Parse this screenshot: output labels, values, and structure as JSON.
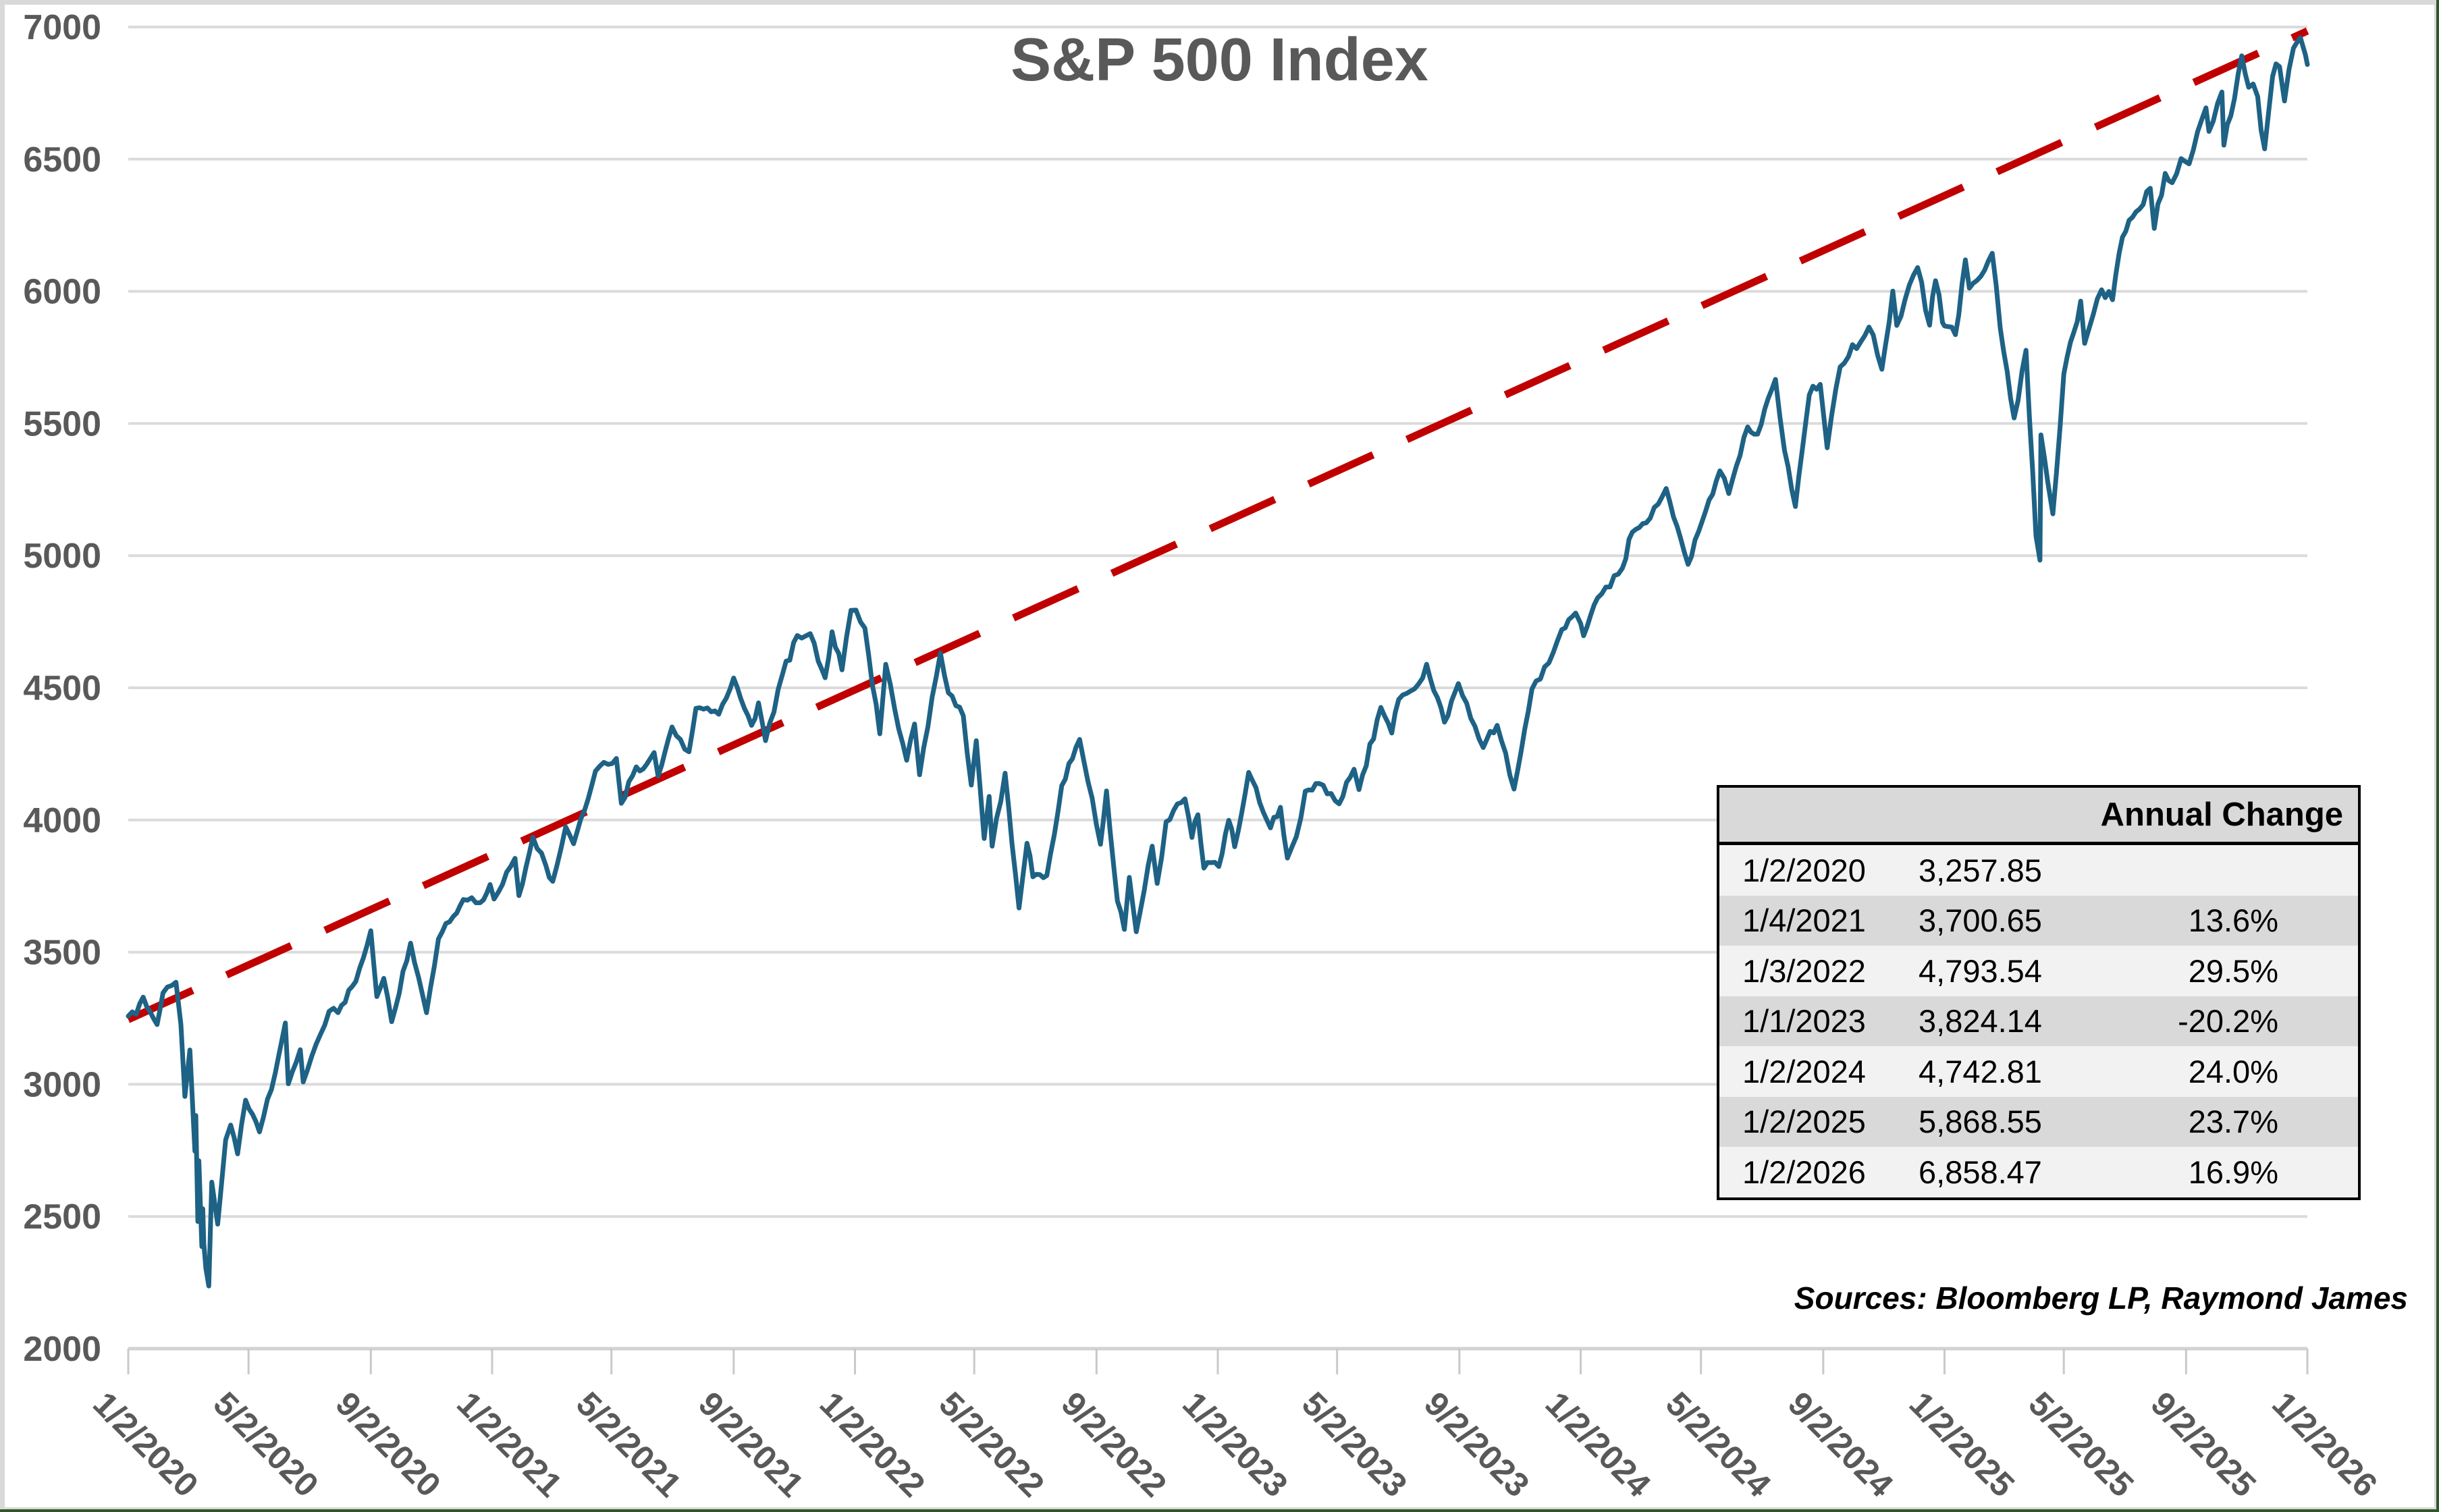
{
  "chart_data": {
    "type": "line",
    "title": "S&P 500 Index",
    "source_note": "Sources: Bloomberg LP, Raymond James",
    "grid": "horizontal",
    "colors": {
      "series_line": "#1E6285",
      "trend_line": "#C00000",
      "gridline": "#DBDBDB",
      "axis_line": "#D2D2D2",
      "tick": "#C9C9C9",
      "axis_label": "#595959",
      "title": "#595959",
      "table_header_bg": "#D9D9D9",
      "table_row_light": "#F2F2F2",
      "table_row_dark": "#D9D9D9",
      "frame": "#D9D9D9",
      "edge": "#33552A"
    },
    "y_axis": {
      "min": 2000,
      "max": 7000,
      "step": 500,
      "tick_labels": [
        "7000",
        "6500",
        "6000",
        "5500",
        "5000",
        "4500",
        "4000",
        "3500",
        "3000",
        "2500",
        "2000"
      ]
    },
    "x_axis": {
      "tick_labels": [
        "1/2/2020",
        "5/2/2020",
        "9/2/2020",
        "1/2/2021",
        "5/2/2021",
        "9/2/2021",
        "1/2/2022",
        "5/2/2022",
        "9/2/2022",
        "1/2/2023",
        "5/2/2023",
        "9/2/2023",
        "1/2/2024",
        "5/2/2024",
        "9/2/2024",
        "1/2/2025",
        "5/2/2025",
        "9/2/2025",
        "1/2/2026"
      ]
    },
    "series": [
      {
        "name": "S&P 500 Index",
        "color": "#1E6285",
        "style": "solid",
        "points": [
          [
            "2020-01-02",
            3258
          ],
          [
            "2020-01-10",
            3265
          ],
          [
            "2020-01-17",
            3330
          ],
          [
            "2020-01-31",
            3226
          ],
          [
            "2020-02-06",
            3346
          ],
          [
            "2020-02-19",
            3386
          ],
          [
            "2020-02-24",
            3226
          ],
          [
            "2020-02-28",
            2954
          ],
          [
            "2020-03-04",
            3130
          ],
          [
            "2020-03-09",
            2747
          ],
          [
            "2020-03-10",
            2882
          ],
          [
            "2020-03-12",
            2481
          ],
          [
            "2020-03-13",
            2711
          ],
          [
            "2020-03-16",
            2386
          ],
          [
            "2020-03-17",
            2529
          ],
          [
            "2020-03-18",
            2398
          ],
          [
            "2020-03-20",
            2305
          ],
          [
            "2020-03-23",
            2237
          ],
          [
            "2020-03-26",
            2630
          ],
          [
            "2020-04-01",
            2471
          ],
          [
            "2020-04-09",
            2790
          ],
          [
            "2020-04-14",
            2846
          ],
          [
            "2020-04-21",
            2737
          ],
          [
            "2020-04-29",
            2940
          ],
          [
            "2020-05-13",
            2820
          ],
          [
            "2020-05-29",
            3044
          ],
          [
            "2020-06-08",
            3232
          ],
          [
            "2020-06-11",
            3002
          ],
          [
            "2020-06-23",
            3131
          ],
          [
            "2020-06-26",
            3009
          ],
          [
            "2020-07-09",
            3152
          ],
          [
            "2020-07-22",
            3276
          ],
          [
            "2020-07-31",
            3271
          ],
          [
            "2020-08-18",
            3390
          ],
          [
            "2020-09-02",
            3581
          ],
          [
            "2020-09-08",
            3332
          ],
          [
            "2020-09-15",
            3401
          ],
          [
            "2020-09-23",
            3237
          ],
          [
            "2020-10-12",
            3534
          ],
          [
            "2020-10-28",
            3271
          ],
          [
            "2020-11-09",
            3550
          ],
          [
            "2020-11-24",
            3635
          ],
          [
            "2020-12-04",
            3699
          ],
          [
            "2020-12-21",
            3687
          ],
          [
            "2020-12-31",
            3756
          ],
          [
            "2021-01-04",
            3701
          ],
          [
            "2021-01-25",
            3855
          ],
          [
            "2021-01-29",
            3714
          ],
          [
            "2021-02-12",
            3935
          ],
          [
            "2021-02-25",
            3829
          ],
          [
            "2021-03-04",
            3768
          ],
          [
            "2021-03-17",
            3974
          ],
          [
            "2021-03-25",
            3910
          ],
          [
            "2021-04-16",
            4185
          ],
          [
            "2021-05-07",
            4233
          ],
          [
            "2021-05-12",
            4063
          ],
          [
            "2021-05-27",
            4201
          ],
          [
            "2021-06-03",
            4193
          ],
          [
            "2021-06-14",
            4255
          ],
          [
            "2021-06-18",
            4166
          ],
          [
            "2021-07-02",
            4352
          ],
          [
            "2021-07-19",
            4258
          ],
          [
            "2021-07-26",
            4422
          ],
          [
            "2021-08-18",
            4400
          ],
          [
            "2021-09-02",
            4537
          ],
          [
            "2021-09-20",
            4358
          ],
          [
            "2021-09-27",
            4443
          ],
          [
            "2021-10-04",
            4300
          ],
          [
            "2021-10-21",
            4550
          ],
          [
            "2021-11-05",
            4698
          ],
          [
            "2021-11-18",
            4705
          ],
          [
            "2021-11-30",
            4567
          ],
          [
            "2021-12-03",
            4538
          ],
          [
            "2021-12-10",
            4712
          ],
          [
            "2021-12-20",
            4568
          ],
          [
            "2021-12-29",
            4793
          ],
          [
            "2022-01-03",
            4794
          ],
          [
            "2022-01-12",
            4726
          ],
          [
            "2022-01-27",
            4326
          ],
          [
            "2022-02-02",
            4589
          ],
          [
            "2022-02-11",
            4419
          ],
          [
            "2022-02-23",
            4226
          ],
          [
            "2022-03-03",
            4363
          ],
          [
            "2022-03-08",
            4171
          ],
          [
            "2022-03-29",
            4632
          ],
          [
            "2022-04-06",
            4481
          ],
          [
            "2022-04-21",
            4394
          ],
          [
            "2022-04-29",
            4132
          ],
          [
            "2022-05-04",
            4300
          ],
          [
            "2022-05-12",
            3930
          ],
          [
            "2022-05-17",
            4089
          ],
          [
            "2022-05-20",
            3901
          ],
          [
            "2022-06-02",
            4177
          ],
          [
            "2022-06-16",
            3667
          ],
          [
            "2022-06-24",
            3912
          ],
          [
            "2022-06-30",
            3785
          ],
          [
            "2022-07-14",
            3790
          ],
          [
            "2022-07-29",
            4130
          ],
          [
            "2022-08-16",
            4305
          ],
          [
            "2022-09-06",
            3908
          ],
          [
            "2022-09-12",
            4110
          ],
          [
            "2022-09-23",
            3693
          ],
          [
            "2022-09-30",
            3586
          ],
          [
            "2022-10-05",
            3783
          ],
          [
            "2022-10-12",
            3577
          ],
          [
            "2022-10-28",
            3901
          ],
          [
            "2022-11-02",
            3760
          ],
          [
            "2022-11-11",
            3993
          ],
          [
            "2022-11-30",
            4080
          ],
          [
            "2022-12-07",
            3934
          ],
          [
            "2022-12-13",
            4020
          ],
          [
            "2022-12-19",
            3818
          ],
          [
            "2022-12-30",
            3840
          ],
          [
            "2023-01-03",
            3824
          ],
          [
            "2023-01-13",
            3999
          ],
          [
            "2023-01-19",
            3899
          ],
          [
            "2023-02-02",
            4180
          ],
          [
            "2023-02-24",
            3970
          ],
          [
            "2023-03-06",
            4048
          ],
          [
            "2023-03-13",
            3856
          ],
          [
            "2023-03-22",
            3937
          ],
          [
            "2023-03-31",
            4109
          ],
          [
            "2023-04-14",
            4138
          ],
          [
            "2023-05-04",
            4061
          ],
          [
            "2023-05-19",
            4192
          ],
          [
            "2023-05-24",
            4115
          ],
          [
            "2023-06-15",
            4426
          ],
          [
            "2023-06-26",
            4329
          ],
          [
            "2023-07-03",
            4456
          ],
          [
            "2023-07-27",
            4537
          ],
          [
            "2023-07-31",
            4589
          ],
          [
            "2023-08-18",
            4370
          ],
          [
            "2023-09-01",
            4516
          ],
          [
            "2023-09-26",
            4274
          ],
          [
            "2023-10-10",
            4358
          ],
          [
            "2023-10-27",
            4117
          ],
          [
            "2023-11-14",
            4496
          ],
          [
            "2023-12-01",
            4594
          ],
          [
            "2023-12-14",
            4720
          ],
          [
            "2023-12-28",
            4783
          ],
          [
            "2024-01-02",
            4743
          ],
          [
            "2024-01-05",
            4697
          ],
          [
            "2024-01-19",
            4840
          ],
          [
            "2024-02-13",
            4953
          ],
          [
            "2024-02-23",
            5089
          ],
          [
            "2024-03-08",
            5124
          ],
          [
            "2024-03-28",
            5254
          ],
          [
            "2024-04-19",
            4967
          ],
          [
            "2024-05-03",
            5128
          ],
          [
            "2024-05-21",
            5321
          ],
          [
            "2024-05-30",
            5235
          ],
          [
            "2024-06-18",
            5487
          ],
          [
            "2024-06-28",
            5460
          ],
          [
            "2024-07-16",
            5667
          ],
          [
            "2024-07-25",
            5399
          ],
          [
            "2024-08-05",
            5186
          ],
          [
            "2024-08-19",
            5608
          ],
          [
            "2024-08-30",
            5648
          ],
          [
            "2024-09-06",
            5408
          ],
          [
            "2024-09-19",
            5714
          ],
          [
            "2024-10-18",
            5865
          ],
          [
            "2024-10-31",
            5705
          ],
          [
            "2024-11-11",
            6001
          ],
          [
            "2024-11-15",
            5871
          ],
          [
            "2024-12-06",
            6090
          ],
          [
            "2024-12-18",
            5872
          ],
          [
            "2024-12-24",
            6040
          ],
          [
            "2024-12-31",
            5882
          ],
          [
            "2025-01-02",
            5869
          ],
          [
            "2025-01-13",
            5836
          ],
          [
            "2025-01-23",
            6119
          ],
          [
            "2025-01-27",
            6012
          ],
          [
            "2025-02-19",
            6144
          ],
          [
            "2025-02-27",
            5862
          ],
          [
            "2025-03-13",
            5521
          ],
          [
            "2025-03-25",
            5777
          ],
          [
            "2025-04-04",
            5074
          ],
          [
            "2025-04-08",
            4983
          ],
          [
            "2025-04-09",
            5457
          ],
          [
            "2025-04-16",
            5276
          ],
          [
            "2025-04-21",
            5158
          ],
          [
            "2025-05-02",
            5687
          ],
          [
            "2025-05-12",
            5844
          ],
          [
            "2025-05-19",
            5963
          ],
          [
            "2025-05-23",
            5803
          ],
          [
            "2025-06-09",
            6006
          ],
          [
            "2025-06-20",
            5968
          ],
          [
            "2025-06-30",
            6205
          ],
          [
            "2025-07-10",
            6280
          ],
          [
            "2025-07-28",
            6390
          ],
          [
            "2025-08-01",
            6238
          ],
          [
            "2025-08-12",
            6446
          ],
          [
            "2025-08-19",
            6411
          ],
          [
            "2025-08-28",
            6502
          ],
          [
            "2025-09-05",
            6482
          ],
          [
            "2025-09-22",
            6694
          ],
          [
            "2025-09-25",
            6605
          ],
          [
            "2025-10-08",
            6754
          ],
          [
            "2025-10-10",
            6553
          ],
          [
            "2025-10-17",
            6664
          ],
          [
            "2025-10-28",
            6891
          ],
          [
            "2025-11-04",
            6772
          ],
          [
            "2025-11-13",
            6737
          ],
          [
            "2025-11-20",
            6539
          ],
          [
            "2025-11-28",
            6813
          ],
          [
            "2025-12-05",
            6850
          ],
          [
            "2025-12-10",
            6720
          ],
          [
            "2025-12-19",
            6920
          ],
          [
            "2025-12-26",
            6960
          ],
          [
            "2025-12-31",
            6895
          ],
          [
            "2026-01-02",
            6858
          ]
        ]
      },
      {
        "name": "Trend",
        "color": "#C00000",
        "style": "dashed",
        "points": [
          [
            "2020-01-02",
            3245
          ],
          [
            "2026-01-02",
            6985
          ]
        ]
      }
    ],
    "annual_change_table": {
      "header": "Annual Change",
      "rows": [
        {
          "date": "1/2/2020",
          "value": "3,257.85",
          "change": ""
        },
        {
          "date": "1/4/2021",
          "value": "3,700.65",
          "change": "13.6%"
        },
        {
          "date": "1/3/2022",
          "value": "4,793.54",
          "change": "29.5%"
        },
        {
          "date": "1/1/2023",
          "value": "3,824.14",
          "change": "-20.2%"
        },
        {
          "date": "1/2/2024",
          "value": "4,742.81",
          "change": "24.0%"
        },
        {
          "date": "1/2/2025",
          "value": "5,868.55",
          "change": "23.7%"
        },
        {
          "date": "1/2/2026",
          "value": "6,858.47",
          "change": "16.9%"
        }
      ]
    }
  }
}
